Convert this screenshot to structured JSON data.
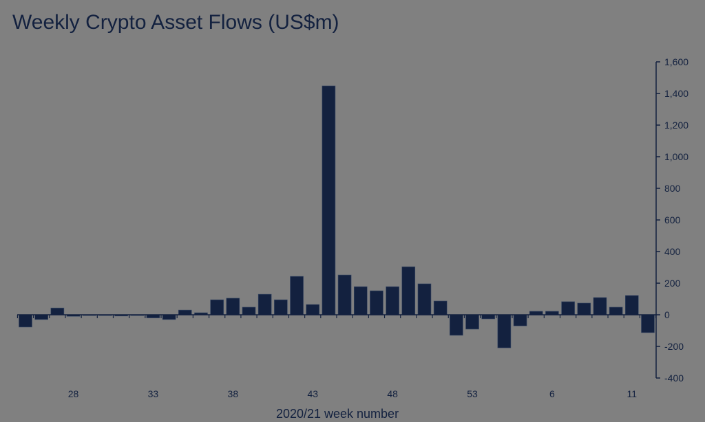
{
  "chart_data": {
    "type": "bar",
    "title": "Weekly Crypto Asset Flows (US$m)",
    "xlabel": "2020/21 week number",
    "ylabel": "",
    "ylim": [
      -400,
      1600
    ],
    "yticks": [
      -400,
      -200,
      0,
      200,
      400,
      600,
      800,
      1000,
      1200,
      1400,
      1600
    ],
    "ytick_labels": [
      "-400",
      "-200",
      "0",
      "200",
      "400",
      "600",
      "800",
      "1,000",
      "1,200",
      "1,400",
      "1,600"
    ],
    "xtick_labels": [
      {
        "index": 3,
        "label": "28"
      },
      {
        "index": 8,
        "label": "33"
      },
      {
        "index": 13,
        "label": "38"
      },
      {
        "index": 18,
        "label": "43"
      },
      {
        "index": 23,
        "label": "48"
      },
      {
        "index": 28,
        "label": "53"
      },
      {
        "index": 33,
        "label": "6"
      },
      {
        "index": 38,
        "label": "11"
      }
    ],
    "values": [
      -78,
      -30,
      43,
      -10,
      -5,
      -5,
      -8,
      -5,
      -20,
      -30,
      30,
      13,
      95,
      105,
      48,
      130,
      95,
      243,
      65,
      1448,
      252,
      178,
      152,
      178,
      304,
      196,
      87,
      -130,
      -91,
      -26,
      -209,
      -70,
      22,
      22,
      83,
      74,
      109,
      48,
      122,
      -113
    ],
    "colors": {
      "bar": "#13213f",
      "axis": "#13213f",
      "text": "#13213f",
      "background": "#808080"
    },
    "axis_side": "right",
    "grid": false
  }
}
